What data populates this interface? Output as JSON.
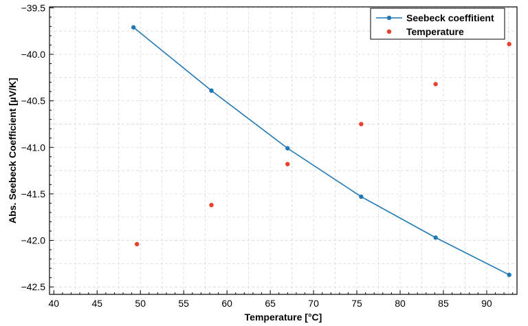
{
  "chart_data": {
    "type": "line",
    "xlabel": "Temperature [°C]",
    "ylabel": "Abs. Seebeck Coefficient [µV/K]",
    "xlim": [
      39.5,
      93.5
    ],
    "ylim": [
      -42.58,
      -39.49
    ],
    "xticks": [
      40,
      45,
      50,
      55,
      60,
      65,
      70,
      75,
      80,
      85,
      90
    ],
    "yticks": [
      -39.5,
      -40.0,
      -40.5,
      -41.0,
      -41.5,
      -42.0,
      -42.5
    ],
    "ytick_labels": [
      "−39.5",
      "−40.0",
      "−40.5",
      "−41.0",
      "−41.5",
      "−42.0",
      "−42.5"
    ],
    "grid": true,
    "legend_position": "top-right",
    "series": [
      {
        "name": "Seebeck coeffitient",
        "style": "line-with-markers",
        "color": "#1f77b4",
        "x": [
          49.2,
          58.2,
          67.0,
          75.5,
          84.1,
          92.6
        ],
        "y": [
          -39.71,
          -40.39,
          -41.01,
          -41.53,
          -41.97,
          -42.37
        ]
      },
      {
        "name": "Temperature",
        "style": "markers",
        "color": "#e8412c",
        "x": [
          49.6,
          58.2,
          67.0,
          75.5,
          84.1,
          92.6
        ],
        "y": [
          -42.04,
          -41.62,
          -41.18,
          -40.75,
          -40.32,
          -39.89
        ]
      }
    ]
  }
}
